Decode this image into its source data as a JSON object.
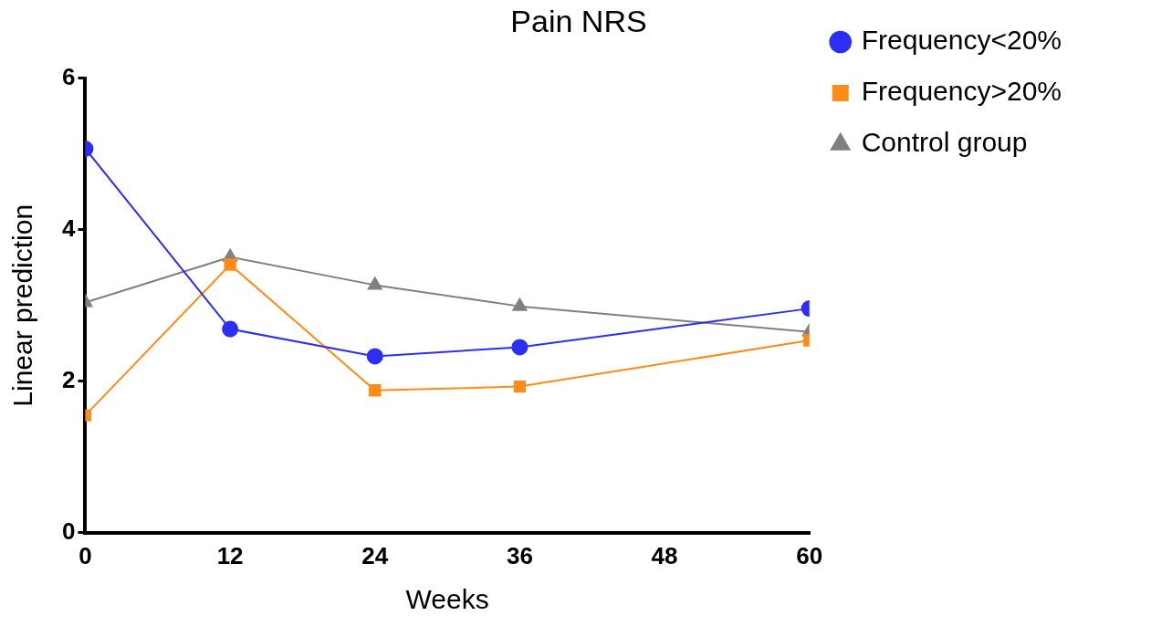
{
  "chart_data": {
    "type": "line",
    "title": "Pain NRS",
    "xlabel": "Weeks",
    "ylabel": "Linear prediction",
    "x": [
      0,
      12,
      24,
      36,
      60
    ],
    "series": [
      {
        "name": "Frequency<20%",
        "color": "#2b2ef5",
        "marker": "circle",
        "values": [
          5.07,
          2.69,
          2.33,
          2.45,
          2.96
        ]
      },
      {
        "name": "Frequency>20%",
        "color": "#ff8c1a",
        "marker": "square",
        "values": [
          1.55,
          3.54,
          1.88,
          1.93,
          2.54
        ]
      },
      {
        "name": "Control group",
        "color": "#808080",
        "marker": "triangle",
        "values": [
          3.04,
          3.64,
          3.27,
          2.99,
          2.65
        ]
      }
    ],
    "xlim": [
      0,
      60
    ],
    "xticks": [
      0,
      12,
      24,
      36,
      48,
      60
    ],
    "ylim": [
      0,
      6
    ],
    "yticks": [
      0,
      2,
      4,
      6
    ],
    "grid": false,
    "legend": "top right",
    "line_style": "solid"
  }
}
